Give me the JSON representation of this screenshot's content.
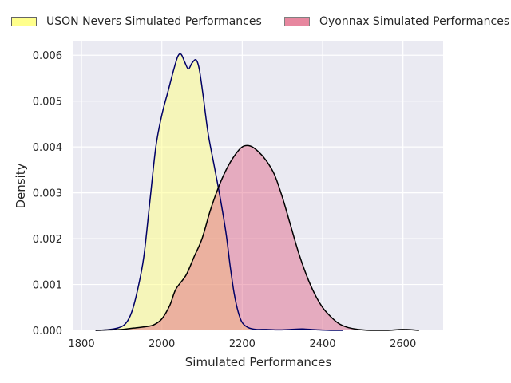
{
  "chart_data": {
    "type": "area",
    "title": "",
    "xlabel": "Simulated Performances",
    "ylabel": "Density",
    "xlim": [
      1780,
      2700
    ],
    "ylim": [
      0,
      0.0063
    ],
    "xticks": [
      1800,
      2000,
      2200,
      2400,
      2600
    ],
    "xtick_labels": [
      "1800",
      "2000",
      "2200",
      "2400",
      "2600"
    ],
    "yticks": [
      0.0,
      0.001,
      0.002,
      0.003,
      0.004,
      0.005,
      0.006
    ],
    "ytick_labels": [
      "0.000",
      "0.001",
      "0.002",
      "0.003",
      "0.004",
      "0.005",
      "0.006"
    ],
    "grid": true,
    "legend_position": "top",
    "background": "#eaeaf2",
    "series": [
      {
        "name": "USON Nevers Simulated Performances",
        "fill": "#ffff80",
        "line": "#000066",
        "x": [
          1835,
          1860,
          1890,
          1910,
          1925,
          1940,
          1955,
          1970,
          1985,
          2000,
          2015,
          2030,
          2040,
          2048,
          2057,
          2066,
          2075,
          2085,
          2093,
          2103,
          2115,
          2130,
          2145,
          2160,
          2170,
          2180,
          2190,
          2200,
          2215,
          2235,
          2260,
          2290,
          2320,
          2350,
          2390,
          2420,
          2450
        ],
        "y": [
          0.0,
          1e-05,
          5e-05,
          0.00015,
          0.0004,
          0.0009,
          0.0016,
          0.0028,
          0.004,
          0.0047,
          0.0052,
          0.0057,
          0.00598,
          0.00602,
          0.00585,
          0.0057,
          0.00583,
          0.0059,
          0.0057,
          0.0051,
          0.0043,
          0.0036,
          0.0029,
          0.0021,
          0.0014,
          0.0008,
          0.0004,
          0.00017,
          6e-05,
          2e-05,
          2e-05,
          1e-05,
          2e-05,
          3e-05,
          1e-05,
          0.0,
          0.0
        ]
      },
      {
        "name": "Oyonnax Simulated Performances",
        "fill": "#e06080",
        "line": "#000000",
        "x": [
          1835,
          1870,
          1900,
          1930,
          1960,
          1980,
          2000,
          2020,
          2035,
          2060,
          2080,
          2100,
          2120,
          2140,
          2160,
          2180,
          2200,
          2220,
          2240,
          2260,
          2280,
          2300,
          2320,
          2340,
          2360,
          2380,
          2400,
          2420,
          2440,
          2460,
          2480,
          2500,
          2520,
          2560,
          2600,
          2640
        ],
        "y": [
          0.0,
          1e-05,
          2e-05,
          5e-05,
          8e-05,
          0.00012,
          0.00025,
          0.00055,
          0.0009,
          0.0012,
          0.0016,
          0.002,
          0.0026,
          0.0031,
          0.0035,
          0.0038,
          0.004,
          0.00402,
          0.0039,
          0.0037,
          0.0034,
          0.0029,
          0.0023,
          0.0017,
          0.0012,
          0.0008,
          0.0005,
          0.0003,
          0.00015,
          7e-05,
          3e-05,
          1e-05,
          0.0,
          0.0,
          2e-05,
          0.0
        ]
      }
    ]
  }
}
